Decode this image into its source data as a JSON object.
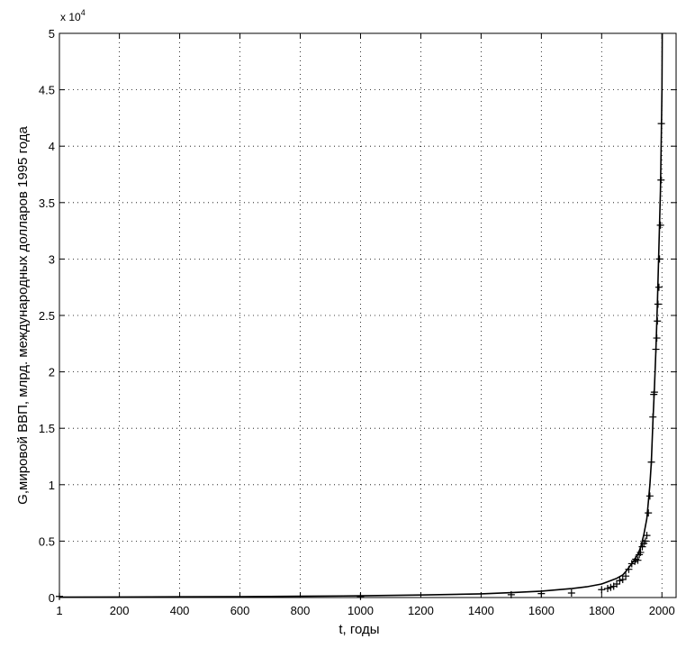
{
  "chart_data": {
    "type": "line",
    "title": "",
    "xlabel": "t, годы",
    "ylabel": "G,мировой ВВП, млрд. международных долларов 1995 года",
    "y_exponent_label": "x 10",
    "y_exponent_power": "4",
    "y_multiplier": 10000,
    "xlim": [
      1,
      2050
    ],
    "ylim": [
      0,
      5
    ],
    "grid": true,
    "x_ticks": [
      1,
      200,
      400,
      600,
      800,
      1000,
      1200,
      1400,
      1600,
      1800,
      2000
    ],
    "x_tick_labels": [
      "1",
      "200",
      "400",
      "600",
      "800",
      "1000",
      "1200",
      "1400",
      "1600",
      "1800",
      "2000"
    ],
    "y_ticks": [
      0,
      0.5,
      1,
      1.5,
      2,
      2.5,
      3,
      3.5,
      4,
      4.5,
      5
    ],
    "y_tick_labels": [
      "0",
      "0.5",
      "1",
      "1.5",
      "2",
      "2.5",
      "3",
      "3.5",
      "4",
      "4.5",
      "5"
    ],
    "series": [
      {
        "style": "line",
        "x": [
          1,
          200,
          400,
          600,
          800,
          1000,
          1200,
          1400,
          1500,
          1600,
          1700,
          1750,
          1800,
          1820,
          1850,
          1870,
          1880,
          1900,
          1910,
          1920,
          1930,
          1940,
          1950,
          1960,
          1965,
          1970,
          1975,
          1980,
          1985,
          1990,
          1995,
          1998,
          2000,
          2001
        ],
        "y": [
          0.0035,
          0.0045,
          0.006,
          0.008,
          0.011,
          0.015,
          0.022,
          0.033,
          0.043,
          0.057,
          0.079,
          0.095,
          0.12,
          0.14,
          0.17,
          0.2,
          0.23,
          0.3,
          0.34,
          0.38,
          0.45,
          0.56,
          0.7,
          1.0,
          1.2,
          1.55,
          1.85,
          2.2,
          2.6,
          3.1,
          3.6,
          4.1,
          4.5,
          5.0
        ]
      },
      {
        "style": "markers",
        "x": [
          1,
          1000,
          1500,
          1600,
          1700,
          1800,
          1820,
          1830,
          1840,
          1850,
          1860,
          1870,
          1880,
          1890,
          1900,
          1910,
          1913,
          1920,
          1925,
          1929,
          1935,
          1940,
          1945,
          1950,
          1955,
          1960,
          1965,
          1970,
          1973,
          1975,
          1980,
          1983,
          1985,
          1987,
          1990,
          1992,
          1995,
          1997,
          1998
        ],
        "y": [
          0.01,
          0.01,
          0.025,
          0.035,
          0.04,
          0.07,
          0.08,
          0.09,
          0.1,
          0.12,
          0.15,
          0.16,
          0.19,
          0.25,
          0.3,
          0.32,
          0.34,
          0.33,
          0.38,
          0.4,
          0.45,
          0.48,
          0.5,
          0.55,
          0.75,
          0.9,
          1.2,
          1.6,
          1.8,
          1.82,
          2.2,
          2.3,
          2.45,
          2.6,
          2.75,
          3.0,
          3.3,
          3.7,
          4.2
        ]
      }
    ]
  }
}
